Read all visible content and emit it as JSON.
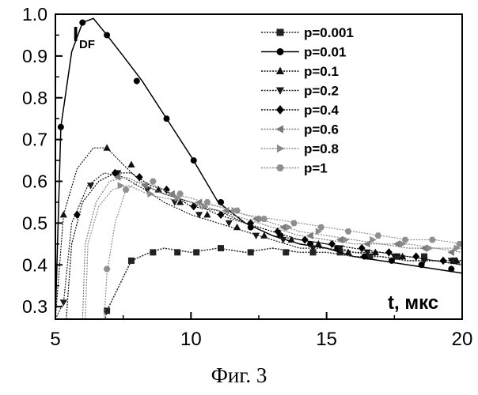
{
  "chart_data": {
    "type": "line",
    "ylabel_main": "I",
    "ylabel_sub": "DF",
    "xlabel": "t, мкс",
    "caption": "Фиг. 3",
    "xlim": [
      5,
      20
    ],
    "ylim": [
      0.27,
      1.0
    ],
    "xticks": [
      5,
      10,
      15,
      20
    ],
    "xtick_labels": [
      "5",
      "10",
      "15",
      "20"
    ],
    "yticks": [
      0.3,
      0.4,
      0.5,
      0.6,
      0.7,
      0.8,
      0.9,
      1.0
    ],
    "ytick_labels": [
      "0.3",
      "0.4",
      "0.5",
      "0.6",
      "0.7",
      "0.8",
      "0.9",
      "1.0"
    ],
    "grid": false,
    "legend_position": "top-right",
    "series": [
      {
        "name": "p=0.001",
        "marker": "square",
        "color": "#222222",
        "points": [
          [
            6.8,
            0.26
          ],
          [
            6.9,
            0.29
          ],
          [
            7.5,
            0.37
          ],
          [
            7.8,
            0.41
          ],
          [
            8.5,
            0.43
          ],
          [
            9.0,
            0.44
          ],
          [
            10.0,
            0.43
          ],
          [
            11.0,
            0.44
          ],
          [
            12.0,
            0.43
          ],
          [
            13.0,
            0.44
          ],
          [
            14.0,
            0.43
          ],
          [
            15.0,
            0.43
          ],
          [
            16.0,
            0.42
          ],
          [
            17.0,
            0.42
          ],
          [
            18.0,
            0.41
          ],
          [
            19.0,
            0.41
          ],
          [
            20.0,
            0.41
          ]
        ],
        "marker_points": [
          [
            6.9,
            0.29
          ],
          [
            7.8,
            0.41
          ],
          [
            8.6,
            0.43
          ],
          [
            9.5,
            0.43
          ],
          [
            10.2,
            0.43
          ],
          [
            11.1,
            0.44
          ],
          [
            12.2,
            0.43
          ],
          [
            13.5,
            0.43
          ],
          [
            14.5,
            0.43
          ],
          [
            15.5,
            0.43
          ],
          [
            16.6,
            0.42
          ],
          [
            17.6,
            0.42
          ],
          [
            18.6,
            0.42
          ],
          [
            19.7,
            0.41
          ]
        ]
      },
      {
        "name": "p=0.01",
        "marker": "circle",
        "color": "#000000",
        "points": [
          [
            5.0,
            0.27
          ],
          [
            5.2,
            0.73
          ],
          [
            5.6,
            0.91
          ],
          [
            6.0,
            0.98
          ],
          [
            6.4,
            0.99
          ],
          [
            6.9,
            0.95
          ],
          [
            7.5,
            0.9
          ],
          [
            8.2,
            0.84
          ],
          [
            9.0,
            0.76
          ],
          [
            10.0,
            0.66
          ],
          [
            11.0,
            0.55
          ],
          [
            12.0,
            0.5
          ],
          [
            13.0,
            0.47
          ],
          [
            14.0,
            0.45
          ],
          [
            15.0,
            0.44
          ],
          [
            16.0,
            0.42
          ],
          [
            17.0,
            0.41
          ],
          [
            18.0,
            0.4
          ],
          [
            19.0,
            0.39
          ],
          [
            20.0,
            0.38
          ]
        ],
        "marker_points": [
          [
            5.2,
            0.73
          ],
          [
            6.0,
            0.98
          ],
          [
            6.9,
            0.95
          ],
          [
            8.0,
            0.84
          ],
          [
            9.1,
            0.75
          ],
          [
            10.1,
            0.65
          ],
          [
            11.1,
            0.55
          ],
          [
            12.2,
            0.49
          ],
          [
            13.3,
            0.47
          ],
          [
            14.4,
            0.45
          ],
          [
            15.4,
            0.44
          ],
          [
            16.4,
            0.42
          ],
          [
            17.4,
            0.41
          ],
          [
            18.5,
            0.4
          ],
          [
            19.6,
            0.39
          ]
        ]
      },
      {
        "name": "p=0.1",
        "marker": "triangle-up",
        "color": "#111111",
        "points": [
          [
            5.0,
            0.27
          ],
          [
            5.3,
            0.52
          ],
          [
            5.8,
            0.63
          ],
          [
            6.4,
            0.68
          ],
          [
            6.9,
            0.68
          ],
          [
            7.5,
            0.64
          ],
          [
            8.3,
            0.59
          ],
          [
            9.0,
            0.57
          ],
          [
            10.0,
            0.55
          ],
          [
            11.0,
            0.52
          ],
          [
            12.0,
            0.5
          ],
          [
            13.0,
            0.47
          ],
          [
            14.0,
            0.46
          ],
          [
            15.0,
            0.45
          ],
          [
            16.0,
            0.43
          ],
          [
            17.0,
            0.43
          ],
          [
            18.0,
            0.42
          ],
          [
            19.0,
            0.41
          ],
          [
            20.0,
            0.41
          ]
        ],
        "marker_points": [
          [
            5.3,
            0.52
          ],
          [
            6.9,
            0.68
          ],
          [
            7.8,
            0.64
          ],
          [
            8.8,
            0.58
          ],
          [
            9.6,
            0.55
          ],
          [
            10.6,
            0.52
          ],
          [
            11.7,
            0.49
          ],
          [
            12.7,
            0.47
          ],
          [
            13.7,
            0.46
          ],
          [
            14.7,
            0.45
          ],
          [
            15.8,
            0.43
          ],
          [
            16.8,
            0.43
          ],
          [
            17.8,
            0.42
          ],
          [
            19.8,
            0.41
          ]
        ]
      },
      {
        "name": "p=0.2",
        "marker": "triangle-down",
        "color": "#1a1a1a",
        "points": [
          [
            5.0,
            0.27
          ],
          [
            5.3,
            0.31
          ],
          [
            5.6,
            0.5
          ],
          [
            6.2,
            0.59
          ],
          [
            6.8,
            0.62
          ],
          [
            7.5,
            0.61
          ],
          [
            8.3,
            0.58
          ],
          [
            9.0,
            0.55
          ],
          [
            10.0,
            0.52
          ],
          [
            11.0,
            0.5
          ],
          [
            12.0,
            0.48
          ],
          [
            13.0,
            0.46
          ],
          [
            14.0,
            0.44
          ],
          [
            15.0,
            0.44
          ],
          [
            16.0,
            0.43
          ],
          [
            17.0,
            0.42
          ],
          [
            18.0,
            0.41
          ],
          [
            19.0,
            0.41
          ],
          [
            20.0,
            0.4
          ]
        ],
        "marker_points": [
          [
            5.3,
            0.31
          ],
          [
            6.3,
            0.59
          ],
          [
            7.3,
            0.62
          ],
          [
            8.4,
            0.58
          ],
          [
            9.4,
            0.55
          ],
          [
            10.3,
            0.52
          ],
          [
            11.4,
            0.5
          ],
          [
            12.4,
            0.47
          ],
          [
            13.4,
            0.46
          ],
          [
            14.5,
            0.44
          ],
          [
            15.5,
            0.44
          ],
          [
            16.5,
            0.43
          ],
          [
            17.5,
            0.42
          ],
          [
            18.6,
            0.41
          ],
          [
            19.6,
            0.41
          ]
        ]
      },
      {
        "name": "p=0.4",
        "marker": "diamond",
        "color": "#000000",
        "points": [
          [
            5.4,
            0.27
          ],
          [
            5.6,
            0.45
          ],
          [
            6.0,
            0.55
          ],
          [
            6.6,
            0.6
          ],
          [
            7.2,
            0.62
          ],
          [
            7.8,
            0.62
          ],
          [
            8.5,
            0.59
          ],
          [
            9.0,
            0.58
          ],
          [
            10.0,
            0.54
          ],
          [
            11.0,
            0.53
          ],
          [
            12.0,
            0.5
          ],
          [
            13.0,
            0.48
          ],
          [
            14.0,
            0.46
          ],
          [
            15.0,
            0.45
          ],
          [
            16.0,
            0.44
          ],
          [
            17.0,
            0.43
          ],
          [
            18.0,
            0.42
          ],
          [
            19.0,
            0.41
          ],
          [
            20.0,
            0.4
          ]
        ],
        "marker_points": [
          [
            5.8,
            0.52
          ],
          [
            7.2,
            0.62
          ],
          [
            8.1,
            0.61
          ],
          [
            9.1,
            0.58
          ],
          [
            10.1,
            0.54
          ],
          [
            11.1,
            0.52
          ],
          [
            12.2,
            0.5
          ],
          [
            13.2,
            0.48
          ],
          [
            14.2,
            0.46
          ],
          [
            15.2,
            0.45
          ],
          [
            16.3,
            0.44
          ],
          [
            17.3,
            0.43
          ],
          [
            18.3,
            0.42
          ],
          [
            19.3,
            0.41
          ]
        ]
      },
      {
        "name": "p=0.6",
        "marker": "triangle-left",
        "color": "#7a7a7a",
        "points": [
          [
            6.0,
            0.27
          ],
          [
            6.1,
            0.45
          ],
          [
            6.5,
            0.55
          ],
          [
            7.0,
            0.6
          ],
          [
            7.6,
            0.61
          ],
          [
            8.3,
            0.59
          ],
          [
            9.0,
            0.57
          ],
          [
            10.0,
            0.55
          ],
          [
            11.0,
            0.53
          ],
          [
            12.0,
            0.51
          ],
          [
            13.0,
            0.49
          ],
          [
            14.0,
            0.47
          ],
          [
            15.0,
            0.46
          ],
          [
            16.0,
            0.45
          ],
          [
            17.0,
            0.45
          ],
          [
            18.0,
            0.44
          ],
          [
            19.0,
            0.44
          ],
          [
            20.0,
            0.43
          ]
        ],
        "marker_points": [
          [
            7.3,
            0.61
          ],
          [
            8.3,
            0.59
          ],
          [
            9.3,
            0.57
          ],
          [
            10.3,
            0.55
          ],
          [
            11.3,
            0.53
          ],
          [
            12.4,
            0.51
          ],
          [
            13.4,
            0.49
          ],
          [
            14.4,
            0.47
          ],
          [
            15.5,
            0.46
          ],
          [
            16.5,
            0.45
          ],
          [
            17.6,
            0.45
          ],
          [
            18.6,
            0.44
          ],
          [
            19.6,
            0.43
          ]
        ]
      },
      {
        "name": "p=0.8",
        "marker": "triangle-right",
        "color": "#8c8c8c",
        "points": [
          [
            6.1,
            0.27
          ],
          [
            6.2,
            0.45
          ],
          [
            6.6,
            0.54
          ],
          [
            7.1,
            0.58
          ],
          [
            7.7,
            0.59
          ],
          [
            8.4,
            0.57
          ],
          [
            9.0,
            0.56
          ],
          [
            10.0,
            0.55
          ],
          [
            11.0,
            0.54
          ],
          [
            12.0,
            0.52
          ],
          [
            13.0,
            0.5
          ],
          [
            14.0,
            0.48
          ],
          [
            15.0,
            0.47
          ],
          [
            16.0,
            0.46
          ],
          [
            17.0,
            0.45
          ],
          [
            18.0,
            0.45
          ],
          [
            19.0,
            0.44
          ],
          [
            20.0,
            0.44
          ]
        ],
        "marker_points": [
          [
            7.4,
            0.59
          ],
          [
            8.5,
            0.57
          ],
          [
            9.5,
            0.56
          ],
          [
            10.5,
            0.54
          ],
          [
            11.6,
            0.53
          ],
          [
            12.6,
            0.51
          ],
          [
            13.6,
            0.49
          ],
          [
            14.7,
            0.48
          ],
          [
            15.7,
            0.46
          ],
          [
            16.7,
            0.46
          ],
          [
            17.8,
            0.45
          ],
          [
            18.8,
            0.44
          ],
          [
            19.8,
            0.44
          ]
        ]
      },
      {
        "name": "p=1",
        "marker": "hexagon",
        "color": "#8f8f8f",
        "points": [
          [
            6.8,
            0.27
          ],
          [
            6.9,
            0.38
          ],
          [
            7.2,
            0.5
          ],
          [
            7.6,
            0.58
          ],
          [
            8.1,
            0.6
          ],
          [
            8.7,
            0.59
          ],
          [
            9.3,
            0.57
          ],
          [
            10.0,
            0.56
          ],
          [
            11.0,
            0.54
          ],
          [
            12.0,
            0.52
          ],
          [
            13.0,
            0.51
          ],
          [
            14.0,
            0.5
          ],
          [
            15.0,
            0.49
          ],
          [
            16.0,
            0.48
          ],
          [
            17.0,
            0.47
          ],
          [
            18.0,
            0.46
          ],
          [
            19.0,
            0.46
          ],
          [
            20.0,
            0.45
          ]
        ],
        "marker_points": [
          [
            6.9,
            0.39
          ],
          [
            7.6,
            0.58
          ],
          [
            8.6,
            0.6
          ],
          [
            9.6,
            0.57
          ],
          [
            10.6,
            0.55
          ],
          [
            11.7,
            0.53
          ],
          [
            12.7,
            0.51
          ],
          [
            13.8,
            0.5
          ],
          [
            14.8,
            0.49
          ],
          [
            15.8,
            0.48
          ],
          [
            16.9,
            0.47
          ],
          [
            17.9,
            0.46
          ],
          [
            18.9,
            0.46
          ],
          [
            19.9,
            0.45
          ]
        ]
      }
    ]
  }
}
